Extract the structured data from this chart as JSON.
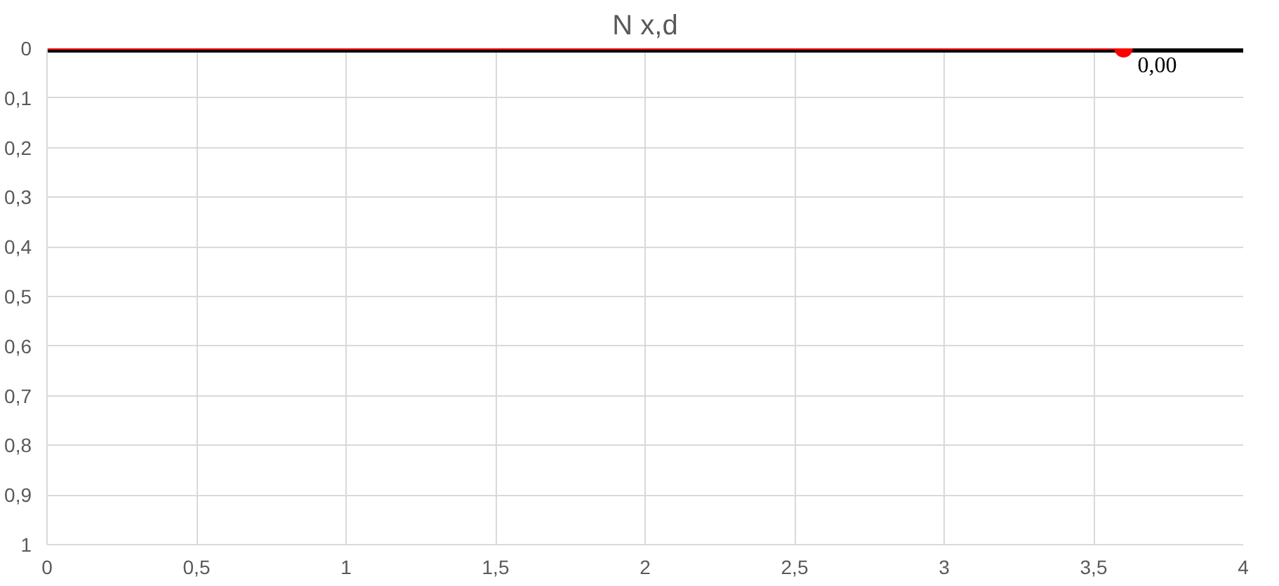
{
  "chart_data": {
    "type": "line",
    "title": "N x,d",
    "series": [
      {
        "color": "#000000",
        "x": [
          0,
          4
        ],
        "values": [
          0,
          0
        ]
      },
      {
        "color": "#ff0000",
        "x": [
          0,
          3.6
        ],
        "values": [
          0,
          0
        ]
      },
      {
        "type": "scatter",
        "color": "#ff0000",
        "x": [
          3.6
        ],
        "values": [
          0
        ],
        "value_labels": [
          "0,00"
        ]
      }
    ],
    "xlim": [
      0,
      4
    ],
    "ylim": [
      1,
      0
    ],
    "xticks": [
      0,
      {
        "value": 0.5,
        "label": "0,5"
      },
      1,
      {
        "value": 1.5,
        "label": "1,5"
      },
      2,
      {
        "value": 2.5,
        "label": "2,5"
      },
      3,
      {
        "value": 3.5,
        "label": "3,5"
      },
      4
    ],
    "yticks": [
      0,
      {
        "value": 0.1,
        "label": "0,1"
      },
      {
        "value": 0.2,
        "label": "0,2"
      },
      {
        "value": 0.3,
        "label": "0,3"
      },
      {
        "value": 0.4,
        "label": "0,4"
      },
      {
        "value": 0.5,
        "label": "0,5"
      },
      {
        "value": 0.6,
        "label": "0,6"
      },
      {
        "value": 0.7,
        "label": "0,7"
      },
      {
        "value": 0.8,
        "label": "0,8"
      },
      {
        "value": 0.9,
        "label": "0,9"
      },
      1
    ],
    "grid": true
  }
}
